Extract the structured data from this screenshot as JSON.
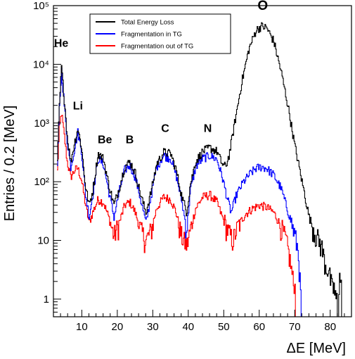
{
  "chart_data": {
    "type": "line",
    "xlabel": "ΔE [MeV]",
    "ylabel": "Entries / 0.2 [MeV]",
    "xlim": [
      2,
      86
    ],
    "ylim": [
      0.5,
      100000
    ],
    "yscale": "log",
    "x_ticks": [
      {
        "value": 10,
        "label": "10"
      },
      {
        "value": 20,
        "label": "20"
      },
      {
        "value": 30,
        "label": "30"
      },
      {
        "value": 40,
        "label": "40"
      },
      {
        "value": 50,
        "label": "50"
      },
      {
        "value": 60,
        "label": "60"
      },
      {
        "value": 70,
        "label": "70"
      },
      {
        "value": 80,
        "label": "80"
      }
    ],
    "y_ticks": [
      {
        "value": 1,
        "label": "1"
      },
      {
        "value": 10,
        "label": "10"
      },
      {
        "value": 100,
        "label": "10²"
      },
      {
        "value": 1000,
        "label": "10³"
      },
      {
        "value": 10000,
        "label": "10⁴"
      },
      {
        "value": 100000,
        "label": "10⁵"
      }
    ],
    "legend_position": "top-left",
    "grid": false,
    "series": [
      {
        "name": "Total Energy Loss",
        "color": "#000000",
        "points": [
          [
            3,
            200
          ],
          [
            3.6,
            2000
          ],
          [
            4.2,
            9000
          ],
          [
            5,
            2500
          ],
          [
            5.8,
            600
          ],
          [
            6.8,
            220
          ],
          [
            8,
            500
          ],
          [
            8.8,
            800
          ],
          [
            9.8,
            400
          ],
          [
            11,
            80
          ],
          [
            12,
            40
          ],
          [
            13,
            70
          ],
          [
            14.5,
            300
          ],
          [
            16,
            250
          ],
          [
            17.5,
            90
          ],
          [
            19,
            40
          ],
          [
            20.5,
            80
          ],
          [
            22,
            180
          ],
          [
            23.5,
            220
          ],
          [
            25,
            140
          ],
          [
            26.5,
            60
          ],
          [
            28,
            30
          ],
          [
            29.5,
            70
          ],
          [
            31,
            200
          ],
          [
            33,
            320
          ],
          [
            35,
            300
          ],
          [
            36.5,
            160
          ],
          [
            38,
            60
          ],
          [
            39.5,
            30
          ],
          [
            40.5,
            90
          ],
          [
            42,
            220
          ],
          [
            44,
            330
          ],
          [
            46,
            380
          ],
          [
            48,
            330
          ],
          [
            49.5,
            200
          ],
          [
            50.5,
            180
          ],
          [
            51.5,
            300
          ],
          [
            53,
            1000
          ],
          [
            55,
            5000
          ],
          [
            57,
            18000
          ],
          [
            59,
            38000
          ],
          [
            60.5,
            45000
          ],
          [
            62,
            42000
          ],
          [
            64,
            25000
          ],
          [
            66,
            8000
          ],
          [
            68,
            2000
          ],
          [
            70,
            400
          ],
          [
            72,
            100
          ],
          [
            74,
            25
          ],
          [
            76,
            12
          ],
          [
            77.5,
            8
          ],
          [
            78.5,
            4
          ],
          [
            79.5,
            3
          ],
          [
            80.5,
            1.5
          ],
          [
            81.5,
            1
          ],
          [
            82.5,
            1
          ],
          [
            83.5,
            0.5
          ]
        ]
      },
      {
        "name": "Fragmentation in TG",
        "color": "#0000ff",
        "points": [
          [
            3,
            180
          ],
          [
            3.6,
            1800
          ],
          [
            4.2,
            8000
          ],
          [
            5,
            2000
          ],
          [
            5.8,
            500
          ],
          [
            6.8,
            180
          ],
          [
            8,
            400
          ],
          [
            8.8,
            700
          ],
          [
            9.8,
            350
          ],
          [
            11,
            60
          ],
          [
            12,
            25
          ],
          [
            13,
            60
          ],
          [
            14.5,
            250
          ],
          [
            16,
            200
          ],
          [
            17.5,
            70
          ],
          [
            19,
            25
          ],
          [
            20.5,
            70
          ],
          [
            22,
            160
          ],
          [
            23.5,
            190
          ],
          [
            25,
            120
          ],
          [
            26.5,
            50
          ],
          [
            28,
            20
          ],
          [
            29.5,
            60
          ],
          [
            31,
            180
          ],
          [
            33,
            280
          ],
          [
            35,
            250
          ],
          [
            36.5,
            130
          ],
          [
            38,
            50
          ],
          [
            39.5,
            15
          ],
          [
            40.5,
            70
          ],
          [
            42,
            180
          ],
          [
            44,
            250
          ],
          [
            46,
            280
          ],
          [
            48,
            240
          ],
          [
            49.5,
            120
          ],
          [
            51,
            50
          ],
          [
            52,
            30
          ],
          [
            53.5,
            60
          ],
          [
            55.5,
            100
          ],
          [
            57.5,
            140
          ],
          [
            59,
            170
          ],
          [
            60.5,
            180
          ],
          [
            62,
            170
          ],
          [
            64,
            130
          ],
          [
            66,
            80
          ],
          [
            67.5,
            40
          ],
          [
            69,
            20
          ],
          [
            70,
            12
          ],
          [
            71,
            6
          ],
          [
            71.5,
            1.5
          ],
          [
            72,
            0.5
          ]
        ]
      },
      {
        "name": "Fragmentation out of TG",
        "color": "#ff0000",
        "points": [
          [
            3,
            150
          ],
          [
            3.6,
            800
          ],
          [
            4.2,
            1500
          ],
          [
            5,
            600
          ],
          [
            5.8,
            220
          ],
          [
            6.8,
            120
          ],
          [
            8,
            160
          ],
          [
            8.8,
            170
          ],
          [
            9.8,
            110
          ],
          [
            11,
            40
          ],
          [
            12,
            20
          ],
          [
            13,
            30
          ],
          [
            14.5,
            50
          ],
          [
            16,
            45
          ],
          [
            17.5,
            25
          ],
          [
            19,
            12
          ],
          [
            20.5,
            20
          ],
          [
            22,
            40
          ],
          [
            23.5,
            45
          ],
          [
            25,
            30
          ],
          [
            26.5,
            15
          ],
          [
            28,
            10
          ],
          [
            29.5,
            15
          ],
          [
            31,
            35
          ],
          [
            33,
            55
          ],
          [
            35,
            50
          ],
          [
            36.5,
            30
          ],
          [
            38,
            12
          ],
          [
            39.5,
            8
          ],
          [
            40.5,
            15
          ],
          [
            42,
            35
          ],
          [
            44,
            55
          ],
          [
            46,
            60
          ],
          [
            48,
            45
          ],
          [
            49.5,
            25
          ],
          [
            51,
            15
          ],
          [
            52.5,
            10
          ],
          [
            54,
            18
          ],
          [
            56,
            28
          ],
          [
            58,
            35
          ],
          [
            60,
            40
          ],
          [
            62,
            37
          ],
          [
            64,
            30
          ],
          [
            66,
            18
          ],
          [
            67.5,
            10
          ],
          [
            68.5,
            5
          ],
          [
            69.5,
            2
          ],
          [
            70,
            1
          ],
          [
            70.5,
            0.5
          ]
        ]
      }
    ],
    "annotations": [
      {
        "text": "He",
        "x": 4.2,
        "y": 20000
      },
      {
        "text": "Li",
        "x": 8.9,
        "y": 1700
      },
      {
        "text": "Be",
        "x": 16.5,
        "y": 450
      },
      {
        "text": "B",
        "x": 23.5,
        "y": 450
      },
      {
        "text": "C",
        "x": 33.5,
        "y": 700
      },
      {
        "text": "N",
        "x": 45.5,
        "y": 700
      },
      {
        "text": "O",
        "x": 61,
        "y": 85000
      }
    ]
  }
}
